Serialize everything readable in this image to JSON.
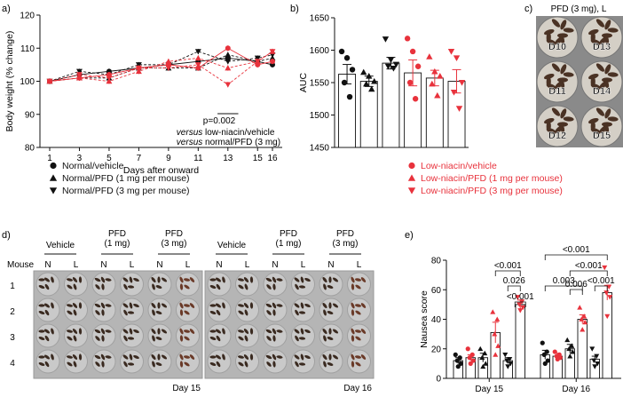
{
  "colors": {
    "black": "#111111",
    "red": "#e8323c",
    "tray": "#b5b5b5",
    "well": "#c9c9c9",
    "seed": "#3a2a20",
    "seed_red": "#6a3a28"
  },
  "panels": {
    "a": "a)",
    "b": "b)",
    "c": "c)",
    "d": "d)",
    "e": "e)"
  },
  "legend": {
    "items": [
      {
        "label": "Normal/vehicle",
        "marker": "circle",
        "color": "#111111"
      },
      {
        "label": "Normal/PFD (1 mg per mouse)",
        "marker": "triangle-up",
        "color": "#111111"
      },
      {
        "label": "Normal/PFD (3 mg per mouse)",
        "marker": "triangle-down",
        "color": "#111111"
      },
      {
        "label": "Low-niacin/vehicle",
        "marker": "circle",
        "color": "#e8323c"
      },
      {
        "label": "Low-niacin/PFD (1 mg per mouse)",
        "marker": "triangle-up",
        "color": "#e8323c"
      },
      {
        "label": "Low-niacin/PFD (3 mg per mouse)",
        "marker": "triangle-down",
        "color": "#e8323c"
      }
    ]
  },
  "photo_c": {
    "title": "PFD (3 mg), L",
    "wells": [
      "D10",
      "D13",
      "D11",
      "D14",
      "D12",
      "D15"
    ]
  },
  "photo_d": {
    "mouse_label": "Mouse",
    "groups": [
      "Vehicle",
      "PFD\n(1 mg)",
      "PFD\n(3 mg)"
    ],
    "group_lines": [
      [
        "Vehicle"
      ],
      [
        "PFD",
        "(1 mg)"
      ],
      [
        "PFD",
        "(3 mg)"
      ]
    ],
    "col_labels": [
      "N",
      "L"
    ],
    "rows": [
      "1",
      "2",
      "3",
      "4"
    ],
    "days": [
      "Day 15",
      "Day 16"
    ]
  },
  "chart_data": [
    {
      "id": "a",
      "type": "line",
      "title": "",
      "xlabel": "Days after onward",
      "ylabel": "Body weight (% change)",
      "x": [
        1,
        3,
        5,
        7,
        9,
        11,
        13,
        15,
        16
      ],
      "xticks": [
        "1",
        "3",
        "5",
        "7",
        "9",
        "11",
        "13",
        "15",
        "16"
      ],
      "yticks": [
        "80",
        "90",
        "100",
        "110",
        "120"
      ],
      "ylim": [
        80,
        120
      ],
      "series": [
        {
          "name": "Normal/vehicle",
          "color": "#111111",
          "marker": "circle",
          "values": [
            100,
            102,
            103,
            104,
            105,
            106,
            107,
            106,
            105
          ]
        },
        {
          "name": "Normal/PFD (1 mg per mouse)",
          "color": "#111111",
          "marker": "triangle-up",
          "values": [
            100,
            101,
            101,
            104,
            104,
            104,
            108,
            106,
            107
          ]
        },
        {
          "name": "Normal/PFD (3 mg per mouse)",
          "color": "#111111",
          "marker": "triangle-down",
          "values": [
            100,
            103,
            102,
            105,
            105,
            109,
            106,
            107,
            108
          ]
        },
        {
          "name": "Low-niacin/vehicle",
          "color": "#e8323c",
          "marker": "circle",
          "values": [
            100,
            101,
            102,
            104,
            105,
            104,
            110,
            105,
            106
          ]
        },
        {
          "name": "Low-niacin/PFD (1 mg per mouse)",
          "color": "#e8323c",
          "marker": "triangle-up",
          "values": [
            100,
            101,
            100,
            103,
            106,
            107,
            104,
            106,
            109
          ]
        },
        {
          "name": "Low-niacin/PFD (3 mg per mouse)",
          "color": "#e8323c",
          "marker": "triangle-down",
          "values": [
            100,
            102,
            101,
            104,
            104,
            105,
            99,
            106,
            109
          ]
        }
      ],
      "annotations": [
        {
          "text": "p=0.002",
          "style": "normal"
        },
        {
          "text": "versus low-niacin/vehicle",
          "emph": "versus",
          "rest": " low-niacin/vehicle"
        },
        {
          "text": "versus normal/PFD (3 mg)",
          "emph": "versus",
          "rest": " normal/PFD (3 mg)"
        }
      ]
    },
    {
      "id": "b",
      "type": "bar",
      "ylabel": "AUC",
      "ylim": [
        1450,
        1650
      ],
      "yticks": [
        "1450",
        "1500",
        "1550",
        "1600",
        "1650"
      ],
      "categories": [
        "Normal/vehicle",
        "Normal/PFD (1 mg per mouse)",
        "Normal/PFD (3 mg per mouse)",
        "Low-niacin/vehicle",
        "Low-niacin/PFD (1 mg per mouse)",
        "Low-niacin/PFD (3 mg per mouse)"
      ],
      "values": [
        1563,
        1552,
        1580,
        1565,
        1557,
        1552
      ],
      "errors": [
        15,
        8,
        9,
        20,
        12,
        18
      ],
      "colors": [
        "#111111",
        "#111111",
        "#111111",
        "#e8323c",
        "#e8323c",
        "#e8323c"
      ],
      "markers": [
        "circle",
        "triangle-up",
        "triangle-down",
        "circle",
        "triangle-up",
        "triangle-down"
      ],
      "points": [
        [
          1598,
          1588,
          1570,
          1550,
          1528
        ],
        [
          1566,
          1560,
          1552,
          1548,
          1540
        ],
        [
          1617,
          1585,
          1578,
          1575,
          1572
        ],
        [
          1618,
          1598,
          1575,
          1550,
          1525
        ],
        [
          1590,
          1567,
          1560,
          1548,
          1530
        ],
        [
          1598,
          1588,
          1550,
          1535,
          1510
        ]
      ]
    },
    {
      "id": "e",
      "type": "bar",
      "ylabel": "Nausea score",
      "ylim": [
        0,
        80
      ],
      "yticks": [
        "0",
        "20",
        "40",
        "60",
        "80"
      ],
      "categories": [
        "Day 15",
        "Day 16"
      ],
      "series": [
        {
          "name": "Normal/vehicle",
          "color": "#111111",
          "marker": "circle",
          "values": [
            12,
            16
          ],
          "errors": [
            2,
            3
          ],
          "points": [
            [
              16,
              14,
              12,
              10,
              8
            ],
            [
              24,
              18,
              16,
              12,
              10
            ]
          ]
        },
        {
          "name": "Low-niacin/vehicle",
          "color": "#e8323c",
          "marker": "circle",
          "values": [
            14,
            15
          ],
          "errors": [
            2,
            2
          ],
          "points": [
            [
              20,
              16,
              14,
              12,
              10
            ],
            [
              18,
              16,
              15,
              14,
              13
            ]
          ]
        },
        {
          "name": "Normal/PFD (1 mg per mouse)",
          "color": "#111111",
          "marker": "triangle-up",
          "values": [
            14,
            20
          ],
          "errors": [
            3,
            3
          ],
          "points": [
            [
              20,
              17,
              14,
              10,
              8
            ],
            [
              26,
              22,
              20,
              18,
              15
            ]
          ]
        },
        {
          "name": "Low-niacin/PFD (1 mg per mouse)",
          "color": "#e8323c",
          "marker": "triangle-up",
          "values": [
            31,
            40
          ],
          "errors": [
            7,
            3
          ],
          "points": [
            [
              45,
              40,
              30,
              22,
              16
            ],
            [
              48,
              42,
              40,
              38,
              33
            ]
          ]
        },
        {
          "name": "Normal/PFD (3 mg per mouse)",
          "color": "#111111",
          "marker": "triangle-down",
          "values": [
            12,
            13
          ],
          "errors": [
            2,
            2
          ],
          "points": [
            [
              16,
              13,
              12,
              10,
              8
            ],
            [
              20,
              15,
              12,
              10,
              8
            ]
          ]
        },
        {
          "name": "Low-niacin/PFD (3 mg per mouse)",
          "color": "#e8323c",
          "marker": "triangle-down",
          "values": [
            50,
            58
          ],
          "errors": [
            3,
            5
          ],
          "points": [
            [
              55,
              52,
              50,
              48,
              46
            ],
            [
              75,
              62,
              58,
              55,
              42
            ]
          ]
        }
      ],
      "comparisons": [
        {
          "day": 0,
          "from": 3,
          "to": 5,
          "text": "<0.001",
          "level": 2
        },
        {
          "day": 0,
          "from": 4,
          "to": 5,
          "text": "0.026",
          "level": 1
        },
        {
          "day": 0,
          "from": 5,
          "to": 5,
          "text": "<0.001",
          "level": 0
        },
        {
          "day": 1,
          "from": 0,
          "to": 5,
          "text": "<0.001",
          "level": 3
        },
        {
          "day": 1,
          "from": 2,
          "to": 5,
          "text": "<0.001",
          "level": 2
        },
        {
          "day": 1,
          "from": 4,
          "to": 5,
          "text": "<0.001",
          "level": 1
        },
        {
          "day": 1,
          "from": 0,
          "to": 3,
          "text": "0.003",
          "level": 1
        },
        {
          "day": 1,
          "from": 2,
          "to": 3,
          "text": "0.006",
          "level": 0
        }
      ]
    }
  ]
}
